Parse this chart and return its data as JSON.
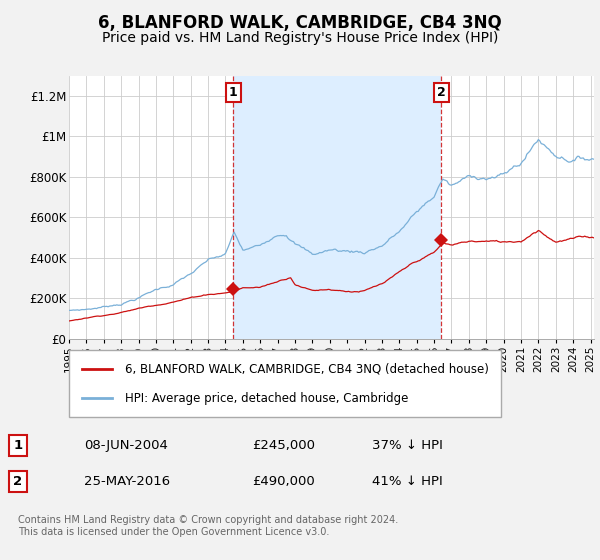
{
  "title": "6, BLANFORD WALK, CAMBRIDGE, CB4 3NQ",
  "subtitle": "Price paid vs. HM Land Registry's House Price Index (HPI)",
  "title_fontsize": 12,
  "subtitle_fontsize": 10,
  "ylabel_ticks": [
    "£0",
    "£200K",
    "£400K",
    "£600K",
    "£800K",
    "£1M",
    "£1.2M"
  ],
  "ytick_values": [
    0,
    200000,
    400000,
    600000,
    800000,
    1000000,
    1200000
  ],
  "ylim": [
    0,
    1300000
  ],
  "xlim_start": 1995.0,
  "xlim_end": 2025.2,
  "background_color": "#f2f2f2",
  "plot_bg_color": "#ffffff",
  "shade_color": "#ddeeff",
  "grid_color": "#cccccc",
  "hpi_color": "#7ab0d8",
  "price_color": "#cc1111",
  "sale1_date": 2004.44,
  "sale1_price": 245000,
  "sale1_label": "1",
  "sale2_date": 2016.4,
  "sale2_price": 490000,
  "sale2_label": "2",
  "legend_line1": "6, BLANFORD WALK, CAMBRIDGE, CB4 3NQ (detached house)",
  "legend_line2": "HPI: Average price, detached house, Cambridge",
  "table_row1": [
    "1",
    "08-JUN-2004",
    "£245,000",
    "37% ↓ HPI"
  ],
  "table_row2": [
    "2",
    "25-MAY-2016",
    "£490,000",
    "41% ↓ HPI"
  ],
  "footnote": "Contains HM Land Registry data © Crown copyright and database right 2024.\nThis data is licensed under the Open Government Licence v3.0."
}
